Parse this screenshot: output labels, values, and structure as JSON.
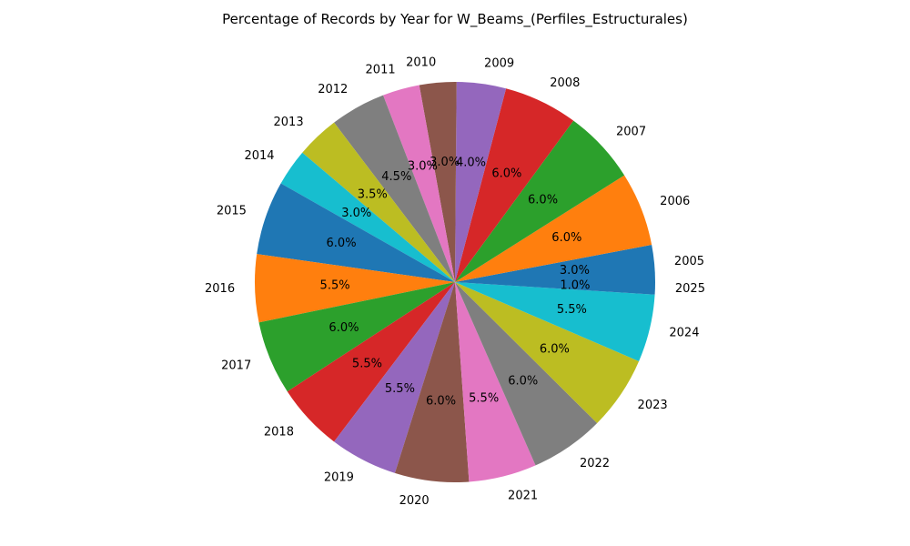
{
  "chart_data": {
    "type": "pie",
    "title": "Percentage of Records by Year for W_Beams_(Perfiles_Estructurales)",
    "slices": [
      {
        "label": "2005",
        "value": 3.0,
        "pct_label": "3.0%",
        "color": "#1f77b4"
      },
      {
        "label": "2006",
        "value": 6.0,
        "pct_label": "6.0%",
        "color": "#ff7f0e"
      },
      {
        "label": "2007",
        "value": 6.0,
        "pct_label": "6.0%",
        "color": "#2ca02c"
      },
      {
        "label": "2008",
        "value": 6.0,
        "pct_label": "6.0%",
        "color": "#d62728"
      },
      {
        "label": "2009",
        "value": 4.0,
        "pct_label": "4.0%",
        "color": "#9467bd"
      },
      {
        "label": "2010",
        "value": 3.0,
        "pct_label": "3.0%",
        "color": "#8c564b"
      },
      {
        "label": "2011",
        "value": 3.0,
        "pct_label": "3.0%",
        "color": "#e377c2"
      },
      {
        "label": "2012",
        "value": 4.5,
        "pct_label": "4.5%",
        "color": "#7f7f7f"
      },
      {
        "label": "2013",
        "value": 3.5,
        "pct_label": "3.5%",
        "color": "#bcbd22"
      },
      {
        "label": "2014",
        "value": 3.0,
        "pct_label": "3.0%",
        "color": "#17becf"
      },
      {
        "label": "2015",
        "value": 6.0,
        "pct_label": "6.0%",
        "color": "#1f77b4"
      },
      {
        "label": "2016",
        "value": 5.5,
        "pct_label": "5.5%",
        "color": "#ff7f0e"
      },
      {
        "label": "2017",
        "value": 6.0,
        "pct_label": "6.0%",
        "color": "#2ca02c"
      },
      {
        "label": "2018",
        "value": 5.5,
        "pct_label": "5.5%",
        "color": "#d62728"
      },
      {
        "label": "2019",
        "value": 5.5,
        "pct_label": "5.5%",
        "color": "#9467bd"
      },
      {
        "label": "2020",
        "value": 6.0,
        "pct_label": "6.0%",
        "color": "#8c564b"
      },
      {
        "label": "2021",
        "value": 5.5,
        "pct_label": "5.5%",
        "color": "#e377c2"
      },
      {
        "label": "2022",
        "value": 6.0,
        "pct_label": "6.0%",
        "color": "#7f7f7f"
      },
      {
        "label": "2023",
        "value": 6.0,
        "pct_label": "6.0%",
        "color": "#bcbd22"
      },
      {
        "label": "2024",
        "value": 5.5,
        "pct_label": "5.5%",
        "color": "#17becf"
      },
      {
        "label": "2025",
        "value": 1.0,
        "pct_label": "1.0%",
        "color": "#1f77b4"
      }
    ],
    "direction": "counterclockwise",
    "legend": "none"
  }
}
